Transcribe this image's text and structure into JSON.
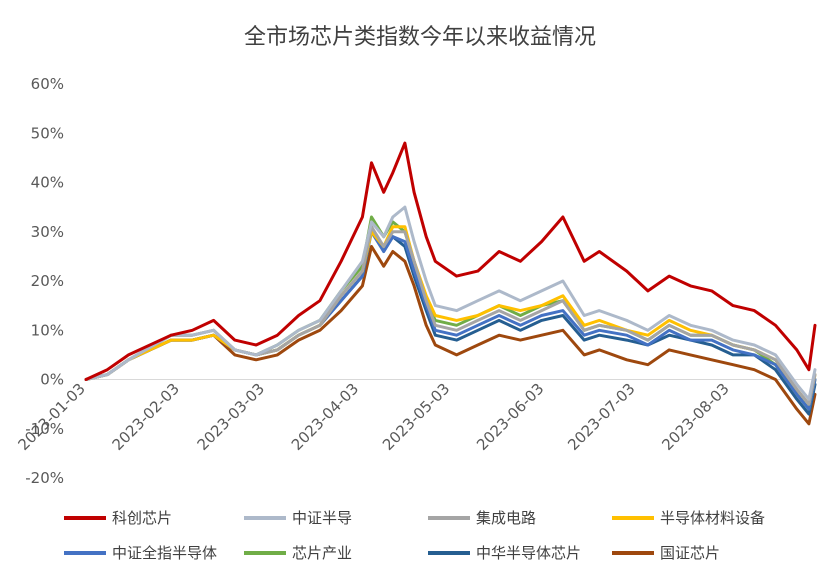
{
  "chart_data": {
    "type": "line",
    "title": "全市场芯片类指数今年以来收益情况",
    "xlabel": "",
    "ylabel": "",
    "ylim": [
      -0.2,
      0.6
    ],
    "y_ticks": [
      "60%",
      "50%",
      "40%",
      "30%",
      "20%",
      "10%",
      "0%",
      "-10%",
      "-20%"
    ],
    "x_ticks": [
      "2023-01-03",
      "2023-02-03",
      "2023-03-03",
      "2023-04-03",
      "2023-05-03",
      "2023-06-03",
      "2023-07-03",
      "2023-08-03"
    ],
    "x_range": [
      "2023-01-03",
      "2023-08-31"
    ],
    "legend_position": "bottom",
    "grid": false,
    "x": [
      "2023-01-03",
      "2023-01-10",
      "2023-01-17",
      "2023-01-31",
      "2023-02-07",
      "2023-02-14",
      "2023-02-21",
      "2023-02-28",
      "2023-03-07",
      "2023-03-14",
      "2023-03-21",
      "2023-03-28",
      "2023-04-04",
      "2023-04-07",
      "2023-04-11",
      "2023-04-14",
      "2023-04-18",
      "2023-04-21",
      "2023-04-25",
      "2023-04-28",
      "2023-05-05",
      "2023-05-12",
      "2023-05-19",
      "2023-05-26",
      "2023-06-02",
      "2023-06-09",
      "2023-06-16",
      "2023-06-21",
      "2023-06-30",
      "2023-07-07",
      "2023-07-14",
      "2023-07-21",
      "2023-07-28",
      "2023-08-04",
      "2023-08-11",
      "2023-08-18",
      "2023-08-25",
      "2023-08-29",
      "2023-08-31"
    ],
    "series": [
      {
        "name": "科创芯片",
        "color": "#C00000",
        "values": [
          0.0,
          0.02,
          0.05,
          0.09,
          0.1,
          0.12,
          0.08,
          0.07,
          0.09,
          0.13,
          0.16,
          0.24,
          0.33,
          0.44,
          0.38,
          0.42,
          0.48,
          0.38,
          0.29,
          0.24,
          0.21,
          0.22,
          0.26,
          0.24,
          0.28,
          0.33,
          0.24,
          0.26,
          0.22,
          0.18,
          0.21,
          0.19,
          0.18,
          0.15,
          0.14,
          0.11,
          0.06,
          0.02,
          0.11
        ]
      },
      {
        "name": "中证半导",
        "color": "#ADB9CA",
        "values": [
          0.0,
          0.01,
          0.04,
          0.09,
          0.09,
          0.1,
          0.06,
          0.05,
          0.07,
          0.1,
          0.12,
          0.18,
          0.24,
          0.32,
          0.29,
          0.33,
          0.35,
          0.28,
          0.2,
          0.15,
          0.14,
          0.16,
          0.18,
          0.16,
          0.18,
          0.2,
          0.13,
          0.14,
          0.12,
          0.1,
          0.13,
          0.11,
          0.1,
          0.08,
          0.07,
          0.05,
          -0.01,
          -0.04,
          0.02
        ]
      },
      {
        "name": "集成电路",
        "color": "#A5A5A5",
        "values": [
          0.0,
          0.01,
          0.04,
          0.09,
          0.09,
          0.1,
          0.06,
          0.05,
          0.06,
          0.09,
          0.11,
          0.17,
          0.22,
          0.31,
          0.27,
          0.3,
          0.3,
          0.24,
          0.16,
          0.11,
          0.1,
          0.12,
          0.14,
          0.12,
          0.14,
          0.16,
          0.1,
          0.11,
          0.1,
          0.08,
          0.11,
          0.09,
          0.09,
          0.07,
          0.06,
          0.04,
          -0.02,
          -0.05,
          0.01
        ]
      },
      {
        "name": "半导体材料设备",
        "color": "#FFC000",
        "values": [
          0.0,
          0.01,
          0.04,
          0.08,
          0.08,
          0.09,
          0.06,
          0.05,
          0.06,
          0.09,
          0.11,
          0.17,
          0.22,
          0.3,
          0.27,
          0.31,
          0.31,
          0.24,
          0.17,
          0.13,
          0.12,
          0.13,
          0.15,
          0.14,
          0.15,
          0.17,
          0.11,
          0.12,
          0.1,
          0.09,
          0.12,
          0.1,
          0.09,
          0.07,
          0.06,
          0.04,
          -0.02,
          -0.05,
          0.01
        ]
      },
      {
        "name": "中证全指半导体",
        "color": "#4472C4",
        "values": [
          0.0,
          0.01,
          0.04,
          0.08,
          0.08,
          0.09,
          0.06,
          0.05,
          0.06,
          0.09,
          0.11,
          0.16,
          0.21,
          0.3,
          0.26,
          0.29,
          0.28,
          0.22,
          0.15,
          0.1,
          0.09,
          0.11,
          0.13,
          0.11,
          0.13,
          0.14,
          0.09,
          0.1,
          0.09,
          0.07,
          0.1,
          0.08,
          0.08,
          0.06,
          0.05,
          0.03,
          -0.03,
          -0.06,
          0.0
        ]
      },
      {
        "name": "芯片产业",
        "color": "#70AD47",
        "values": [
          0.0,
          0.01,
          0.04,
          0.09,
          0.09,
          0.1,
          0.06,
          0.05,
          0.07,
          0.1,
          0.12,
          0.18,
          0.23,
          0.33,
          0.29,
          0.32,
          0.3,
          0.24,
          0.16,
          0.12,
          0.11,
          0.13,
          0.15,
          0.13,
          0.15,
          0.16,
          0.1,
          0.11,
          0.1,
          0.08,
          0.11,
          0.09,
          0.09,
          0.07,
          0.06,
          0.03,
          -0.03,
          -0.06,
          0.0
        ]
      },
      {
        "name": "中华半导体芯片",
        "color": "#255E91",
        "values": [
          0.0,
          0.01,
          0.04,
          0.08,
          0.08,
          0.09,
          0.06,
          0.05,
          0.06,
          0.09,
          0.11,
          0.16,
          0.21,
          0.31,
          0.26,
          0.29,
          0.27,
          0.21,
          0.14,
          0.09,
          0.08,
          0.1,
          0.12,
          0.1,
          0.12,
          0.13,
          0.08,
          0.09,
          0.08,
          0.07,
          0.09,
          0.08,
          0.07,
          0.05,
          0.05,
          0.02,
          -0.04,
          -0.07,
          -0.01
        ]
      },
      {
        "name": "国证芯片",
        "color": "#9E480E",
        "values": [
          0.0,
          0.01,
          0.04,
          0.08,
          0.08,
          0.09,
          0.05,
          0.04,
          0.05,
          0.08,
          0.1,
          0.14,
          0.19,
          0.27,
          0.23,
          0.26,
          0.24,
          0.19,
          0.11,
          0.07,
          0.05,
          0.07,
          0.09,
          0.08,
          0.09,
          0.1,
          0.05,
          0.06,
          0.04,
          0.03,
          0.06,
          0.05,
          0.04,
          0.03,
          0.02,
          0.0,
          -0.06,
          -0.09,
          -0.03
        ]
      }
    ]
  }
}
